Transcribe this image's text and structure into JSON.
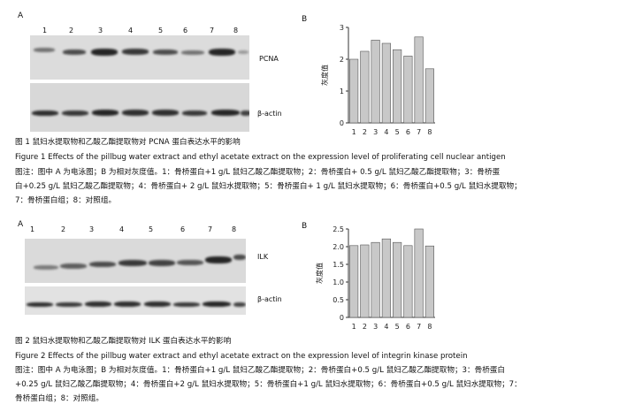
{
  "figure1": {
    "panel_a": "A",
    "panel_b": "B",
    "lanes": [
      "1",
      "2",
      "3",
      "4",
      "5",
      "6",
      "7",
      "8"
    ],
    "blot_labels": [
      "PCNA",
      "β-actin"
    ],
    "caption_cn": "图 1 鼠妇水提取物和乙酸乙酯提取物对 PCNA 蛋白表达水平的影响",
    "caption_en": "Figure 1 Effects of the pillbug water extract and ethyl acetate extract on the expression level of proliferating cell nuclear antigen",
    "note_line1": "图注：图中 A 为电泳图；B 为相对灰度值。1：骨桥蛋白+1 g/L 鼠妇乙酸乙酯提取物；2：骨桥蛋白+ 0.5 g/L 鼠妇乙酸乙酯提取物；3：骨桥蛋",
    "note_line2": "白+0.25 g/L 鼠妇乙酸乙酯提取物；4：骨桥蛋白+ 2 g/L 鼠妇水提取物；5：骨桥蛋白+ 1 g/L 鼠妇水提取物；6：骨桥蛋白+0.5 g/L 鼠妇水提取物；",
    "note_line3": "7：骨桥蛋白组；8：对照组。"
  },
  "figure2": {
    "panel_a": "A",
    "panel_b": "B",
    "lanes": [
      "1",
      "2",
      "3",
      "4",
      "5",
      "6",
      "7",
      "8"
    ],
    "blot_labels": [
      "ILK",
      "β-actin"
    ],
    "caption_cn": "图 2 鼠妇水提取物和乙酸乙酯提取物对 ILK 蛋白表达水平的影响",
    "caption_en": "Figure 2 Effects of the pillbug water extract and ethyl acetate extract on the expression level of integrin kinase protein",
    "note_line1": "图注：图中 A 为电泳图；B 为相对灰度值。1：骨桥蛋白+1 g/L 鼠妇乙酸乙酯提取物；2：骨桥蛋白+0.5 g/L 鼠妇乙酸乙酯提取物；3：骨桥蛋白",
    "note_line2": "+0.25 g/L 鼠妇乙酸乙酯提取物；4：骨桥蛋白+2 g/L 鼠妇水提取物；5：骨桥蛋白+1 g/L 鼠妇水提取物；6：骨桥蛋白+0.5 g/L 鼠妇水提取物；7：",
    "note_line3": "骨桥蛋白组；8：对照组。"
  },
  "chart_data": [
    {
      "type": "bar",
      "categories": [
        "1",
        "2",
        "3",
        "4",
        "5",
        "6",
        "7",
        "8"
      ],
      "values": [
        2.0,
        2.25,
        2.6,
        2.5,
        2.3,
        2.1,
        2.7,
        1.7
      ],
      "ylabel": "灰度值",
      "ylim": [
        0,
        3
      ],
      "yticks": [
        "0",
        "1",
        "2",
        "3"
      ],
      "grid": false,
      "bar_color": "#c8c8c8"
    },
    {
      "type": "bar",
      "categories": [
        "1",
        "2",
        "3",
        "4",
        "5",
        "6",
        "7",
        "8"
      ],
      "values": [
        2.03,
        2.05,
        2.12,
        2.22,
        2.12,
        2.03,
        2.5,
        2.02
      ],
      "ylabel": "灰度值",
      "ylim": [
        0,
        2.5
      ],
      "yticks": [
        "0",
        "0.5",
        "1.0",
        "1.5",
        "2.0",
        "2.5"
      ],
      "grid": false,
      "bar_color": "#c8c8c8"
    }
  ]
}
